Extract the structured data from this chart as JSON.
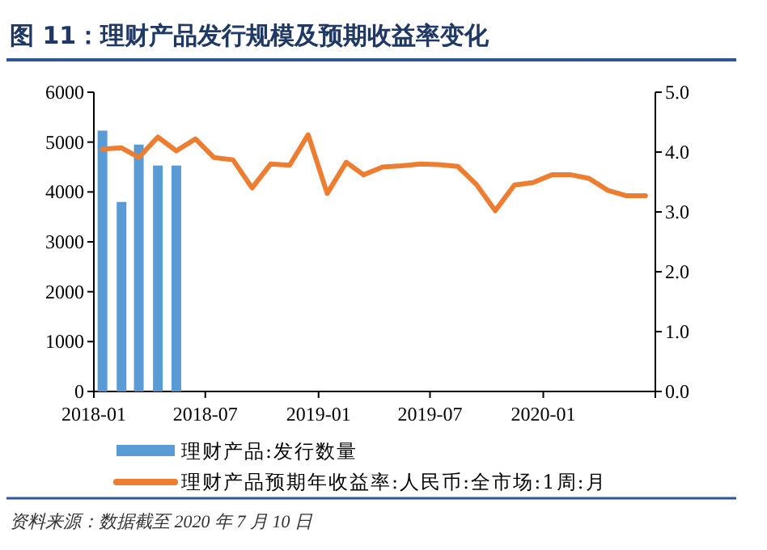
{
  "chart_data": {
    "type": "bar",
    "title": "图 11：理财产品发行规模及预期收益率变化",
    "xlim": [
      "2018-01",
      "2020-07"
    ],
    "xticks": [
      {
        "value": "2018-01",
        "label": "2018-01"
      },
      {
        "value": "2018-07",
        "label": "2018-07"
      },
      {
        "value": "2019-01",
        "label": "2019-01"
      },
      {
        "value": "2019-07",
        "label": "2019-07"
      },
      {
        "value": "2020-01",
        "label": "2020-01"
      },
      {
        "value": "2020-07",
        "label": null
      }
    ],
    "ylim": [
      0,
      6000
    ],
    "yticks": [
      0,
      1000,
      2000,
      3000,
      4000,
      5000,
      6000
    ],
    "y2lim": [
      0,
      5
    ],
    "y2ticks": [
      {
        "value": 0,
        "label": "0.0"
      },
      {
        "value": 1,
        "label": "1.0"
      },
      {
        "value": 2,
        "label": "2.0"
      },
      {
        "value": 3,
        "label": "3.0"
      },
      {
        "value": 4,
        "label": "4.0"
      },
      {
        "value": 5,
        "label": "5.0"
      }
    ],
    "series": [
      {
        "name": "理财产品:发行数量",
        "color": "#5b9bd5",
        "x": [
          "2018-01-15",
          "2018-02-15",
          "2018-03-15",
          "2018-04-15",
          "2018-05-15"
        ],
        "values": [
          5230,
          3800,
          4950,
          4530,
          4530
        ]
      },
      {
        "name": "理财产品预期年收益率:人民币:全市场:1周:月",
        "type": "line",
        "axis": "y2",
        "color": "#ed7d31",
        "x": [
          "2018-01-15",
          "2018-02-15",
          "2018-03-15",
          "2018-04-15",
          "2018-05-15",
          "2018-06-15",
          "2018-07-15",
          "2018-08-15",
          "2018-09-15",
          "2018-10-15",
          "2018-11-15",
          "2018-12-15",
          "2019-01-15",
          "2019-02-15",
          "2019-03-15",
          "2019-04-15",
          "2019-05-15",
          "2019-06-15",
          "2019-07-15",
          "2019-08-15",
          "2019-09-15",
          "2019-10-15",
          "2019-11-15",
          "2019-12-15",
          "2020-01-15",
          "2020-02-15",
          "2020-03-15",
          "2020-04-15",
          "2020-05-15",
          "2020-06-15"
        ],
        "values": [
          4.05,
          4.07,
          3.91,
          4.25,
          4.02,
          4.22,
          3.91,
          3.87,
          3.4,
          3.8,
          3.78,
          4.29,
          3.31,
          3.83,
          3.62,
          3.75,
          3.77,
          3.8,
          3.79,
          3.76,
          3.45,
          3.02,
          3.45,
          3.49,
          3.62,
          3.62,
          3.56,
          3.36,
          3.27,
          3.27
        ]
      }
    ],
    "legend": "bottom",
    "grid": false,
    "marker": "none",
    "line_style": "solid",
    "annotations": [
      "资料来源：数据截至 2020 年 7 月 10 日"
    ]
  }
}
